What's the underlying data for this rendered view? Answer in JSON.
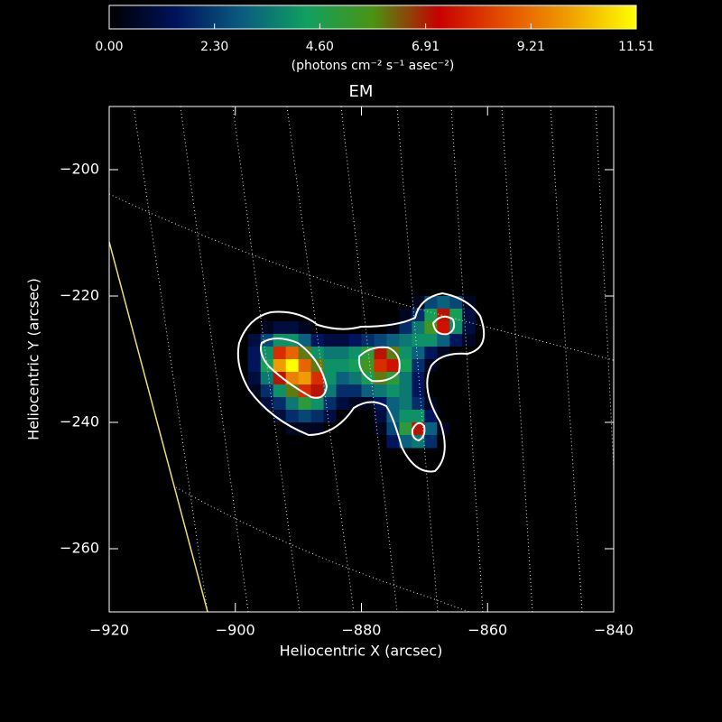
{
  "chart_data": {
    "type": "heatmap",
    "title": "EM",
    "x_label": "Heliocentric X (arcsec)",
    "y_label": "Heliocentric Y (arcsec)",
    "colorbar_label": "(photons cm⁻² s⁻¹ asec⁻²)",
    "zlim": [
      0,
      11.51
    ],
    "zticks": [
      {
        "value": 0,
        "label": "0.00"
      },
      {
        "value": 2.3,
        "label": "2.30"
      },
      {
        "value": 4.6,
        "label": "4.60"
      },
      {
        "value": 6.91,
        "label": "6.91"
      },
      {
        "value": 9.21,
        "label": "9.21"
      },
      {
        "value": 11.51,
        "label": "11.51"
      }
    ],
    "colormap": [
      "#000000",
      "#00125a",
      "#0a5a80",
      "#10a060",
      "#4a9412",
      "#c80000",
      "#e45000",
      "#f0a000",
      "#ffff00"
    ],
    "xlim": [
      -920,
      -840
    ],
    "xticks": [
      {
        "value": -920,
        "label": "−920"
      },
      {
        "value": -900,
        "label": "−900"
      },
      {
        "value": -880,
        "label": "−880"
      },
      {
        "value": -860,
        "label": "−860"
      },
      {
        "value": -840,
        "label": "−840"
      }
    ],
    "ylim": [
      -270,
      -190
    ],
    "yticks": [
      {
        "value": -260,
        "label": "−260"
      },
      {
        "value": -240,
        "label": "−240"
      },
      {
        "value": -220,
        "label": "−220"
      },
      {
        "value": -200,
        "label": "−200"
      }
    ],
    "x": [
      -897,
      -895,
      -893,
      -891,
      -889,
      -887,
      -885,
      -883,
      -881,
      -879,
      -877,
      -875,
      -873,
      -871,
      -869,
      -867,
      -865,
      -863
    ],
    "y": [
      -221,
      -223,
      -225,
      -227,
      -229,
      -231,
      -233,
      -235,
      -237,
      -239,
      -241,
      -243
    ],
    "z": [
      [
        0,
        0,
        0,
        0,
        0,
        0,
        0,
        0,
        0,
        0,
        0,
        0,
        0,
        0.5,
        2.5,
        3,
        2.5,
        0.5
      ],
      [
        0,
        0,
        0,
        0,
        0,
        0,
        0,
        0,
        0,
        0,
        0,
        0,
        0.5,
        2,
        4.5,
        7,
        4.5,
        1
      ],
      [
        0,
        0.5,
        1,
        1,
        0.5,
        0,
        0,
        0,
        0,
        0,
        0,
        0.5,
        2,
        3.5,
        5.5,
        7.5,
        4,
        1
      ],
      [
        1,
        2.5,
        4,
        4,
        3,
        1.5,
        1,
        1,
        1.5,
        2,
        2.5,
        3,
        3.5,
        4,
        4,
        3,
        1.5,
        0.5
      ],
      [
        1.5,
        4,
        8,
        9,
        6,
        4,
        3.5,
        3.5,
        4,
        5,
        7,
        6,
        4,
        3,
        1.5,
        0.5,
        0,
        0
      ],
      [
        1.5,
        4.5,
        10,
        11.5,
        9,
        6,
        4,
        4,
        4.5,
        5.5,
        8,
        7.5,
        4.5,
        2,
        0.5,
        0,
        0,
        0
      ],
      [
        1,
        3.5,
        7,
        9.5,
        10,
        8,
        4,
        3,
        3.5,
        4.5,
        6,
        5,
        3.5,
        1.5,
        0,
        0,
        0,
        0
      ],
      [
        0.5,
        2,
        4,
        6,
        8,
        7,
        3.5,
        2,
        2,
        3,
        3.5,
        4,
        3.5,
        1.5,
        0,
        0,
        0,
        0
      ],
      [
        0,
        1,
        2,
        3.5,
        5,
        4,
        2,
        1,
        0.5,
        0.5,
        1.5,
        3,
        3.5,
        2,
        0.5,
        0,
        0,
        0
      ],
      [
        0,
        0,
        1,
        2,
        2.5,
        2,
        1,
        0,
        0,
        0,
        1,
        3,
        4,
        4,
        1.5,
        0,
        0,
        0
      ],
      [
        0,
        0,
        0,
        0.5,
        0.5,
        0.5,
        0,
        0,
        0,
        0,
        0.5,
        2.5,
        5,
        7,
        3,
        0.5,
        0,
        0
      ],
      [
        0,
        0,
        0,
        0,
        0,
        0,
        0,
        0,
        0,
        0,
        0,
        1.5,
        3,
        3.5,
        2,
        0,
        0,
        0
      ]
    ]
  }
}
